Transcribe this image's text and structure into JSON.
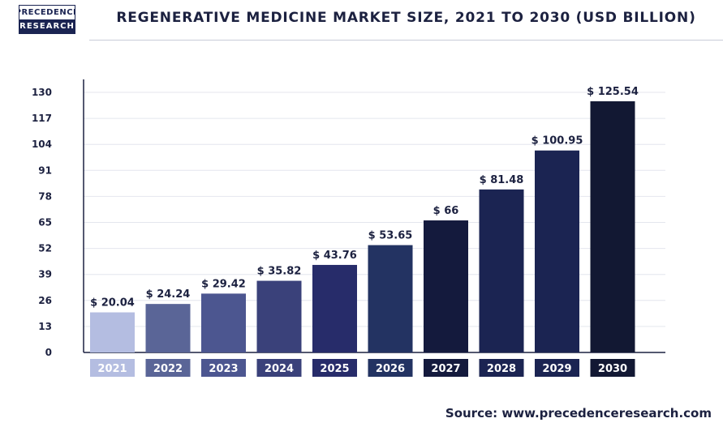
{
  "logo": {
    "line1": "PRECEDENCE",
    "line2": "RESEARCH"
  },
  "source": "Source: www.precedenceresearch.com",
  "chart_data": {
    "type": "bar",
    "title": "REGENERATIVE MEDICINE MARKET SIZE, 2021 TO 2030 (USD BILLION)",
    "categories": [
      "2021",
      "2022",
      "2023",
      "2024",
      "2025",
      "2026",
      "2027",
      "2028",
      "2029",
      "2030"
    ],
    "values": [
      20.04,
      24.24,
      29.42,
      35.82,
      43.76,
      53.65,
      66,
      81.48,
      100.95,
      125.54
    ],
    "data_labels": [
      "$ 20.04",
      "$ 24.24",
      "$ 29.42",
      "$ 35.82",
      "$ 43.76",
      "$ 53.65",
      "$ 66",
      "$ 81.48",
      "$ 100.95",
      "$ 125.54"
    ],
    "yticks": [
      0,
      13,
      26,
      39,
      52,
      65,
      78,
      91,
      104,
      117,
      130
    ],
    "ylim": [
      0,
      130
    ],
    "xlabel": "",
    "ylabel": "",
    "grid": true,
    "bar_colors": [
      "#b4bde1",
      "#5a6597",
      "#4c5690",
      "#3a417a",
      "#272c6a",
      "#233362",
      "#141a3d",
      "#1b2452",
      "#1b2452",
      "#121833"
    ]
  }
}
